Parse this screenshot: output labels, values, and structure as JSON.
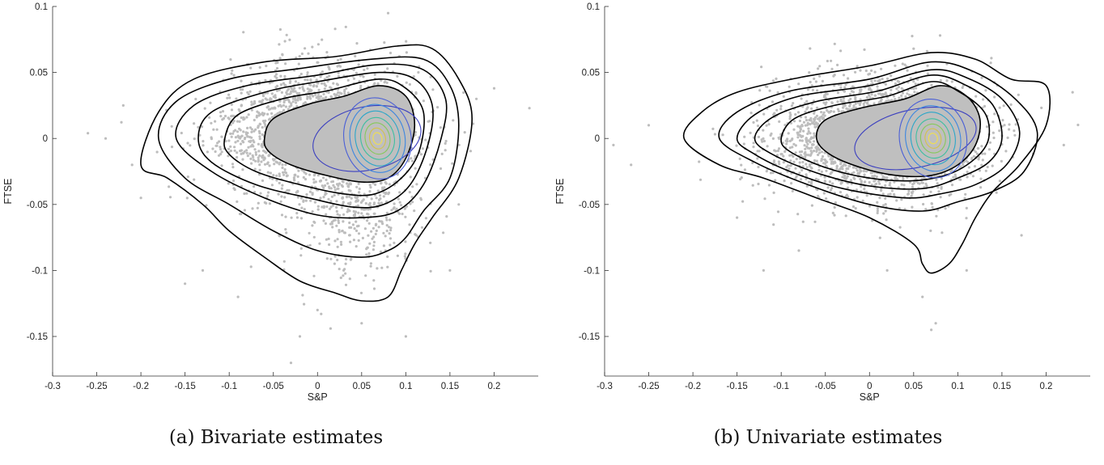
{
  "chart_data": [
    {
      "type": "scatter",
      "title": "",
      "caption": "(a) Bivariate estimates",
      "xlabel": "S&P",
      "ylabel": "FTSE",
      "xlim": [
        -0.3,
        0.25
      ],
      "ylim": [
        -0.18,
        0.1
      ],
      "xticks": [
        -0.3,
        -0.25,
        -0.2,
        -0.15,
        -0.1,
        -0.05,
        0,
        0.05,
        0.1,
        0.15,
        0.2
      ],
      "xtick_labels": [
        "-0.3",
        "-0.25",
        "-0.2",
        "-0.15",
        "-0.1",
        "-0.05",
        "0",
        "0.05",
        "0.1",
        "0.15",
        "0.2"
      ],
      "yticks": [
        0.1,
        0.05,
        0,
        -0.05,
        -0.1,
        -0.15
      ],
      "ytick_labels": [
        "0.1",
        "0.05",
        "0",
        "-0.05",
        "-0.1",
        "-0.15"
      ],
      "grid": false,
      "legend": "none",
      "point_color": "#bdbdbd",
      "cloud": {
        "center": [
          0.0,
          0.0
        ],
        "spread": [
          0.055,
          0.026
        ],
        "count": 2600
      },
      "outliers": [
        [
          -0.26,
          0.004
        ],
        [
          -0.24,
          0.0
        ],
        [
          -0.22,
          0.025
        ],
        [
          -0.21,
          -0.02
        ],
        [
          -0.2,
          -0.045
        ],
        [
          0.24,
          0.023
        ],
        [
          0.2,
          0.038
        ],
        [
          0.18,
          0.03
        ],
        [
          0.08,
          0.095
        ],
        [
          0.02,
          0.083
        ],
        [
          -0.03,
          -0.17
        ],
        [
          -0.02,
          -0.15
        ],
        [
          0.0,
          -0.13
        ],
        [
          0.05,
          -0.14
        ],
        [
          0.1,
          -0.15
        ],
        [
          -0.15,
          -0.11
        ],
        [
          -0.13,
          -0.1
        ],
        [
          -0.09,
          -0.12
        ],
        [
          0.16,
          -0.05
        ],
        [
          0.15,
          -0.1
        ]
      ],
      "contours_outer": [
        [
          [
            -0.2,
            -0.02
          ],
          [
            -0.18,
            0.02
          ],
          [
            -0.14,
            0.045
          ],
          [
            -0.06,
            0.058
          ],
          [
            0.02,
            0.062
          ],
          [
            0.09,
            0.07
          ],
          [
            0.13,
            0.068
          ],
          [
            0.16,
            0.045
          ],
          [
            0.175,
            0.015
          ],
          [
            0.16,
            -0.03
          ],
          [
            0.13,
            -0.06
          ],
          [
            0.11,
            -0.08
          ],
          [
            0.095,
            -0.1
          ],
          [
            0.08,
            -0.12
          ],
          [
            0.05,
            -0.123
          ],
          [
            0.02,
            -0.117
          ],
          [
            -0.02,
            -0.108
          ],
          [
            -0.06,
            -0.09
          ],
          [
            -0.1,
            -0.07
          ],
          [
            -0.13,
            -0.05
          ],
          [
            -0.17,
            -0.03
          ]
        ],
        [
          [
            -0.18,
            0.0
          ],
          [
            -0.16,
            0.028
          ],
          [
            -0.1,
            0.045
          ],
          [
            -0.02,
            0.053
          ],
          [
            0.06,
            0.06
          ],
          [
            0.12,
            0.06
          ],
          [
            0.15,
            0.04
          ],
          [
            0.16,
            0.01
          ],
          [
            0.15,
            -0.03
          ],
          [
            0.12,
            -0.055
          ],
          [
            0.1,
            -0.075
          ],
          [
            0.08,
            -0.085
          ],
          [
            0.05,
            -0.09
          ],
          [
            0.0,
            -0.085
          ],
          [
            -0.05,
            -0.07
          ],
          [
            -0.1,
            -0.05
          ],
          [
            -0.15,
            -0.03
          ]
        ],
        [
          [
            -0.16,
            0.0
          ],
          [
            -0.14,
            0.025
          ],
          [
            -0.08,
            0.04
          ],
          [
            0.0,
            0.048
          ],
          [
            0.07,
            0.056
          ],
          [
            0.12,
            0.052
          ],
          [
            0.145,
            0.03
          ],
          [
            0.14,
            0.0
          ],
          [
            0.12,
            -0.035
          ],
          [
            0.09,
            -0.055
          ],
          [
            0.05,
            -0.06
          ],
          [
            0.0,
            -0.058
          ],
          [
            -0.06,
            -0.045
          ],
          [
            -0.12,
            -0.025
          ]
        ],
        [
          [
            -0.135,
            0.0
          ],
          [
            -0.12,
            0.02
          ],
          [
            -0.06,
            0.035
          ],
          [
            0.0,
            0.043
          ],
          [
            0.07,
            0.05
          ],
          [
            0.11,
            0.045
          ],
          [
            0.13,
            0.025
          ],
          [
            0.125,
            -0.005
          ],
          [
            0.105,
            -0.035
          ],
          [
            0.075,
            -0.05
          ],
          [
            0.04,
            -0.052
          ],
          [
            -0.01,
            -0.045
          ],
          [
            -0.07,
            -0.035
          ],
          [
            -0.12,
            -0.018
          ]
        ],
        [
          [
            -0.105,
            0.0
          ],
          [
            -0.09,
            0.018
          ],
          [
            -0.04,
            0.03
          ],
          [
            0.01,
            0.036
          ],
          [
            0.07,
            0.045
          ],
          [
            0.1,
            0.038
          ],
          [
            0.12,
            0.02
          ],
          [
            0.115,
            -0.01
          ],
          [
            0.095,
            -0.03
          ],
          [
            0.065,
            -0.042
          ],
          [
            0.03,
            -0.042
          ],
          [
            -0.02,
            -0.035
          ],
          [
            -0.07,
            -0.025
          ],
          [
            -0.1,
            -0.012
          ]
        ],
        [
          [
            -0.06,
            0.0
          ],
          [
            -0.05,
            0.015
          ],
          [
            -0.01,
            0.026
          ],
          [
            0.03,
            0.032
          ],
          [
            0.07,
            0.04
          ],
          [
            0.1,
            0.032
          ],
          [
            0.11,
            0.01
          ],
          [
            0.1,
            -0.015
          ],
          [
            0.08,
            -0.03
          ],
          [
            0.05,
            -0.033
          ],
          [
            0.01,
            -0.028
          ],
          [
            -0.03,
            -0.02
          ],
          [
            -0.055,
            -0.01
          ]
        ]
      ],
      "contours_inner_center": [
        0.068,
        0.0
      ],
      "contours_inner": [
        {
          "rx": 0.062,
          "ry": 0.024,
          "color": "#3b3fbf",
          "dx": -0.012
        },
        {
          "rx": 0.038,
          "ry": 0.031,
          "color": "#4a5fd6"
        },
        {
          "rx": 0.031,
          "ry": 0.026,
          "color": "#3c86e0"
        },
        {
          "rx": 0.025,
          "ry": 0.021,
          "color": "#2aa6c9"
        },
        {
          "rx": 0.019,
          "ry": 0.016,
          "color": "#3dbfa0"
        },
        {
          "rx": 0.014,
          "ry": 0.012,
          "color": "#86c95a"
        },
        {
          "rx": 0.009,
          "ry": 0.008,
          "color": "#d3c34a"
        },
        {
          "rx": 0.005,
          "ry": 0.0045,
          "color": "#f2e04c"
        }
      ]
    },
    {
      "type": "scatter",
      "title": "",
      "caption": "(b) Univariate estimates",
      "xlabel": "S&P",
      "ylabel": "FTSE",
      "xlim": [
        -0.3,
        0.25
      ],
      "ylim": [
        -0.18,
        0.1
      ],
      "xticks": [
        -0.3,
        -0.25,
        -0.2,
        -0.15,
        -0.1,
        -0.05,
        0,
        0.05,
        0.1,
        0.15,
        0.2
      ],
      "xtick_labels": [
        "-0.3",
        "-0.25",
        "-0.2",
        "-0.15",
        "-0.1",
        "-0.05",
        "0",
        "0.05",
        "0.1",
        "0.15",
        "0.2"
      ],
      "yticks": [
        0.1,
        0.05,
        0,
        -0.05,
        -0.1,
        -0.15
      ],
      "ytick_labels": [
        "0.1",
        "0.05",
        "0",
        "-0.05",
        "-0.1",
        "-0.15"
      ],
      "grid": false,
      "legend": "none",
      "point_color": "#bdbdbd",
      "cloud": {
        "center": [
          0.01,
          0.0
        ],
        "spread": [
          0.06,
          0.022
        ],
        "count": 2600
      },
      "outliers": [
        [
          -0.29,
          -0.005
        ],
        [
          -0.27,
          -0.02
        ],
        [
          -0.25,
          0.01
        ],
        [
          0.23,
          0.035
        ],
        [
          0.22,
          -0.005
        ],
        [
          0.08,
          0.078
        ],
        [
          0.05,
          0.068
        ],
        [
          -0.12,
          -0.1
        ],
        [
          -0.08,
          -0.085
        ],
        [
          0.07,
          -0.145
        ],
        [
          0.075,
          -0.14
        ],
        [
          0.06,
          -0.12
        ],
        [
          0.11,
          -0.1
        ],
        [
          0.02,
          -0.1
        ],
        [
          -0.15,
          -0.06
        ]
      ],
      "contours_outer": [
        [
          [
            -0.21,
            0.0
          ],
          [
            -0.19,
            0.02
          ],
          [
            -0.15,
            0.035
          ],
          [
            -0.08,
            0.046
          ],
          [
            0.0,
            0.055
          ],
          [
            0.07,
            0.065
          ],
          [
            0.12,
            0.06
          ],
          [
            0.16,
            0.045
          ],
          [
            0.2,
            0.04
          ],
          [
            0.2,
            0.01
          ],
          [
            0.17,
            -0.02
          ],
          [
            0.14,
            -0.04
          ],
          [
            0.12,
            -0.06
          ],
          [
            0.105,
            -0.08
          ],
          [
            0.09,
            -0.095
          ],
          [
            0.07,
            -0.102
          ],
          [
            0.06,
            -0.095
          ],
          [
            0.05,
            -0.08
          ],
          [
            0.0,
            -0.06
          ],
          [
            -0.06,
            -0.045
          ],
          [
            -0.12,
            -0.03
          ],
          [
            -0.17,
            -0.02
          ]
        ],
        [
          [
            -0.17,
            0.0
          ],
          [
            -0.15,
            0.02
          ],
          [
            -0.09,
            0.036
          ],
          [
            0.0,
            0.045
          ],
          [
            0.07,
            0.058
          ],
          [
            0.12,
            0.05
          ],
          [
            0.165,
            0.03
          ],
          [
            0.19,
            0.005
          ],
          [
            0.175,
            -0.025
          ],
          [
            0.14,
            -0.04
          ],
          [
            0.1,
            -0.048
          ],
          [
            0.06,
            -0.055
          ],
          [
            0.0,
            -0.05
          ],
          [
            -0.07,
            -0.035
          ],
          [
            -0.13,
            -0.018
          ]
        ],
        [
          [
            -0.15,
            0.0
          ],
          [
            -0.13,
            0.018
          ],
          [
            -0.08,
            0.032
          ],
          [
            0.0,
            0.04
          ],
          [
            0.07,
            0.052
          ],
          [
            0.11,
            0.046
          ],
          [
            0.15,
            0.03
          ],
          [
            0.17,
            0.005
          ],
          [
            0.155,
            -0.02
          ],
          [
            0.12,
            -0.035
          ],
          [
            0.08,
            -0.042
          ],
          [
            0.04,
            -0.045
          ],
          [
            -0.03,
            -0.038
          ],
          [
            -0.09,
            -0.025
          ],
          [
            -0.13,
            -0.012
          ]
        ],
        [
          [
            -0.13,
            0.0
          ],
          [
            -0.11,
            0.016
          ],
          [
            -0.06,
            0.028
          ],
          [
            0.01,
            0.036
          ],
          [
            0.07,
            0.048
          ],
          [
            0.11,
            0.04
          ],
          [
            0.14,
            0.025
          ],
          [
            0.15,
            0.0
          ],
          [
            0.135,
            -0.018
          ],
          [
            0.1,
            -0.03
          ],
          [
            0.06,
            -0.038
          ],
          [
            0.0,
            -0.036
          ],
          [
            -0.06,
            -0.026
          ],
          [
            -0.11,
            -0.012
          ]
        ],
        [
          [
            -0.1,
            0.0
          ],
          [
            -0.085,
            0.015
          ],
          [
            -0.04,
            0.025
          ],
          [
            0.02,
            0.032
          ],
          [
            0.07,
            0.043
          ],
          [
            0.1,
            0.036
          ],
          [
            0.13,
            0.02
          ],
          [
            0.135,
            0.0
          ],
          [
            0.12,
            -0.015
          ],
          [
            0.09,
            -0.027
          ],
          [
            0.05,
            -0.032
          ],
          [
            0.0,
            -0.03
          ],
          [
            -0.05,
            -0.022
          ],
          [
            -0.09,
            -0.01
          ]
        ],
        [
          [
            -0.06,
            0.0
          ],
          [
            -0.05,
            0.014
          ],
          [
            -0.01,
            0.023
          ],
          [
            0.04,
            0.03
          ],
          [
            0.08,
            0.04
          ],
          [
            0.11,
            0.032
          ],
          [
            0.125,
            0.015
          ],
          [
            0.12,
            -0.005
          ],
          [
            0.1,
            -0.02
          ],
          [
            0.07,
            -0.028
          ],
          [
            0.03,
            -0.028
          ],
          [
            -0.01,
            -0.022
          ],
          [
            -0.045,
            -0.012
          ]
        ]
      ],
      "contours_inner_center": [
        0.072,
        0.0
      ],
      "contours_inner": [
        {
          "rx": 0.07,
          "ry": 0.022,
          "color": "#3b3fbf",
          "dx": -0.02
        },
        {
          "rx": 0.038,
          "ry": 0.03,
          "color": "#4a5fd6"
        },
        {
          "rx": 0.031,
          "ry": 0.025,
          "color": "#3c86e0"
        },
        {
          "rx": 0.025,
          "ry": 0.02,
          "color": "#2aa6c9"
        },
        {
          "rx": 0.019,
          "ry": 0.015,
          "color": "#3dbfa0"
        },
        {
          "rx": 0.014,
          "ry": 0.011,
          "color": "#86c95a"
        },
        {
          "rx": 0.009,
          "ry": 0.0075,
          "color": "#d3c34a"
        },
        {
          "rx": 0.005,
          "ry": 0.004,
          "color": "#f2e04c"
        }
      ]
    }
  ]
}
